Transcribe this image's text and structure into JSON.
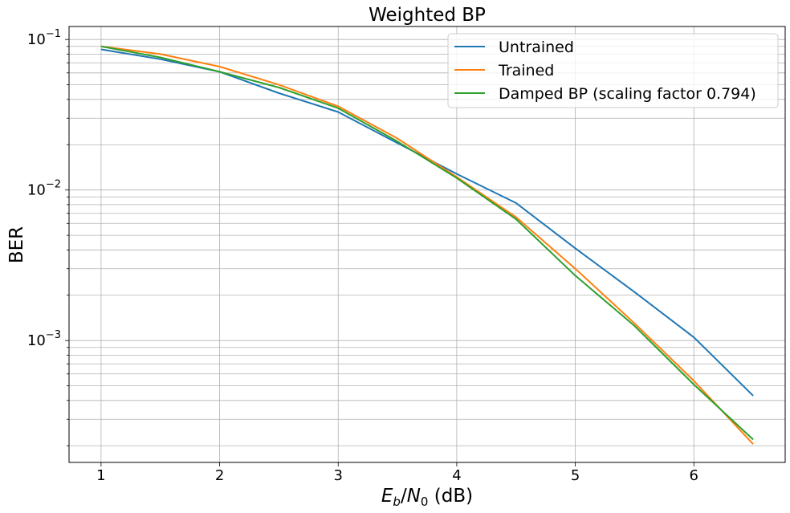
{
  "chart_data": {
    "type": "line",
    "title": "Weighted BP",
    "xlabel": {
      "E": "E",
      "b": "b",
      "slash": "/",
      "N": "N",
      "zero": "0",
      "unit": " (dB)"
    },
    "ylabel": "BER",
    "yscale": "log",
    "xlim": [
      0.73,
      6.77
    ],
    "ylim": [
      0.000155,
      0.122
    ],
    "grid": true,
    "legend_position": "top-right",
    "x_ticks": [
      "1",
      "2",
      "3",
      "4",
      "5",
      "6"
    ],
    "y_ticks": [
      {
        "base": "10",
        "exp": "−1"
      },
      {
        "base": "10",
        "exp": "−2"
      },
      {
        "base": "10",
        "exp": "−3"
      }
    ],
    "x": [
      1,
      1.5,
      2,
      2.5,
      3,
      3.5,
      4,
      4.5,
      5,
      5.5,
      6,
      6.5
    ],
    "series": [
      {
        "name": "Untrained",
        "color": "#1f77b4",
        "values": [
          0.086,
          0.074,
          0.061,
          0.044,
          0.033,
          0.0205,
          0.0128,
          0.0082,
          0.0041,
          0.0021,
          0.00105,
          0.00043
        ]
      },
      {
        "name": "Trained",
        "color": "#ff7f0e",
        "values": [
          0.09,
          0.08,
          0.066,
          0.05,
          0.036,
          0.022,
          0.0122,
          0.0066,
          0.003,
          0.0013,
          0.00054,
          0.000205
        ]
      },
      {
        "name": "Damped BP (scaling factor 0.794)",
        "color": "#2ca02c",
        "values": [
          0.09,
          0.076,
          0.061,
          0.048,
          0.035,
          0.021,
          0.012,
          0.0064,
          0.0027,
          0.00125,
          0.00051,
          0.00022
        ]
      }
    ]
  }
}
